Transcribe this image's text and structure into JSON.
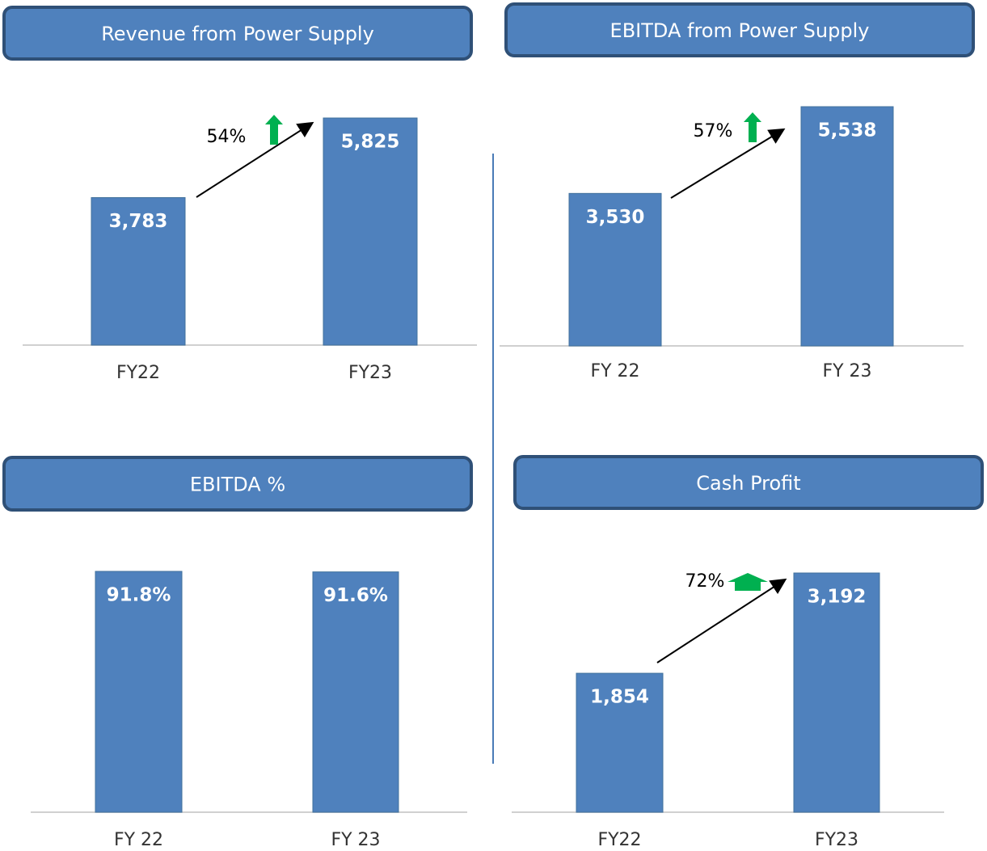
{
  "chart_data": [
    {
      "type": "bar",
      "title": "Revenue from Power Supply",
      "categories": [
        "FY22",
        "FY23"
      ],
      "values": [
        3783,
        5825
      ],
      "value_labels": [
        "3,783",
        "5,825"
      ],
      "annotation": "54%",
      "color": "#4f81bd"
    },
    {
      "type": "bar",
      "title": "EBITDA from Power Supply",
      "categories": [
        "FY 22",
        "FY 23"
      ],
      "values": [
        3530,
        5538
      ],
      "value_labels": [
        "3,530",
        "5,538"
      ],
      "annotation": "57%",
      "color": "#4f81bd"
    },
    {
      "type": "bar",
      "title": "EBITDA %",
      "categories": [
        "FY 22",
        "FY 23"
      ],
      "values": [
        91.8,
        91.6
      ],
      "value_labels": [
        "91.8%",
        "91.6%"
      ],
      "color": "#4f81bd"
    },
    {
      "type": "bar",
      "title": "Cash Profit",
      "categories": [
        "FY22",
        "FY23"
      ],
      "values": [
        1854,
        3192
      ],
      "value_labels": [
        "1,854",
        "3,192"
      ],
      "annotation": "72%",
      "color": "#4f81bd"
    }
  ]
}
